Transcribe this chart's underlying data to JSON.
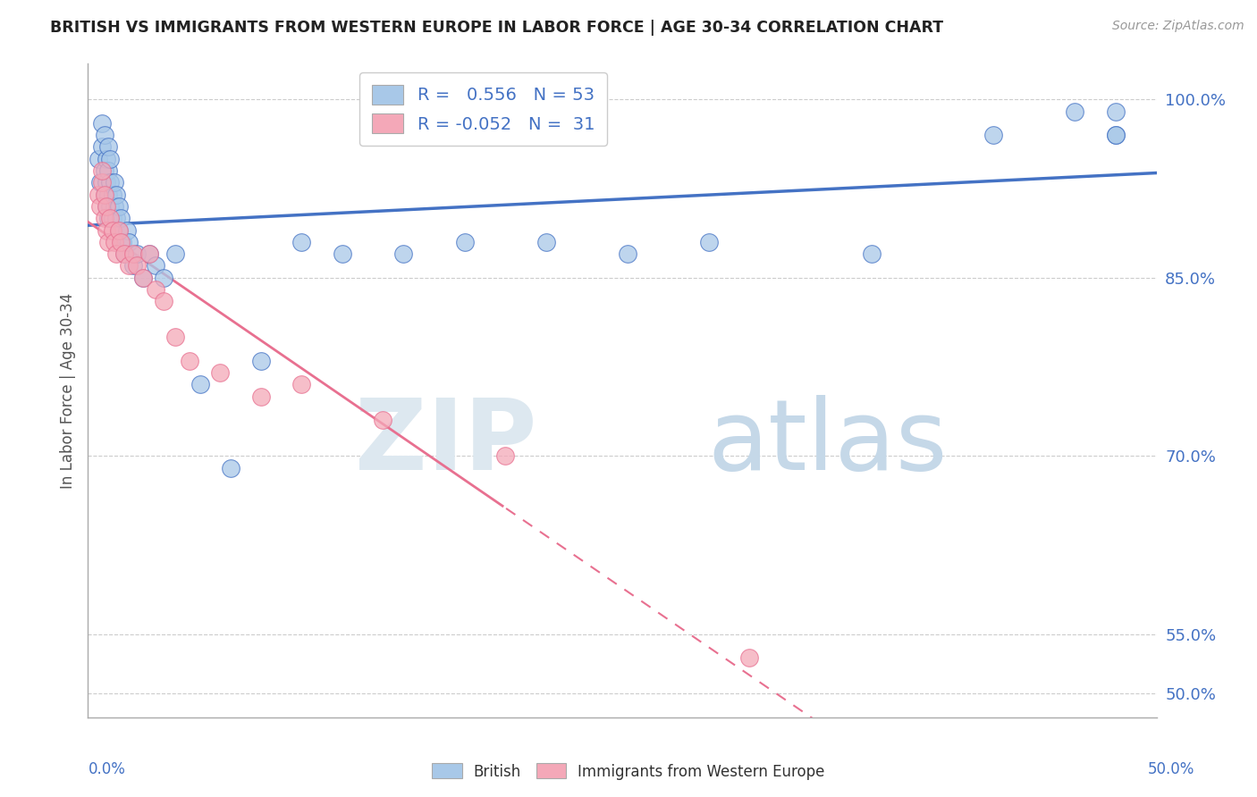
{
  "title": "BRITISH VS IMMIGRANTS FROM WESTERN EUROPE IN LABOR FORCE | AGE 30-34 CORRELATION CHART",
  "source": "Source: ZipAtlas.com",
  "ylabel": "In Labor Force | Age 30-34",
  "ymin": 0.48,
  "ymax": 1.03,
  "xmin": -0.005,
  "xmax": 0.52,
  "blue_R": 0.556,
  "blue_N": 53,
  "pink_R": -0.052,
  "pink_N": 31,
  "blue_color": "#A8C8E8",
  "pink_color": "#F4A8B8",
  "line_blue": "#4472C4",
  "line_pink": "#E87090",
  "yticks": [
    0.5,
    0.55,
    0.7,
    0.85,
    1.0
  ],
  "ytick_labels": [
    "50.0%",
    "55.0%",
    "70.0%",
    "85.0%",
    "100.0%"
  ],
  "blue_scatter_x": [
    0.0,
    0.001,
    0.002,
    0.002,
    0.003,
    0.003,
    0.003,
    0.004,
    0.004,
    0.004,
    0.005,
    0.005,
    0.005,
    0.005,
    0.006,
    0.006,
    0.006,
    0.007,
    0.007,
    0.008,
    0.008,
    0.009,
    0.009,
    0.01,
    0.01,
    0.011,
    0.012,
    0.013,
    0.014,
    0.015,
    0.017,
    0.019,
    0.022,
    0.025,
    0.028,
    0.032,
    0.038,
    0.05,
    0.065,
    0.08,
    0.1,
    0.12,
    0.15,
    0.18,
    0.22,
    0.26,
    0.3,
    0.38,
    0.44,
    0.48,
    0.5,
    0.5,
    0.5
  ],
  "blue_scatter_y": [
    0.95,
    0.93,
    0.96,
    0.98,
    0.92,
    0.94,
    0.97,
    0.91,
    0.93,
    0.95,
    0.9,
    0.92,
    0.94,
    0.96,
    0.91,
    0.93,
    0.95,
    0.9,
    0.92,
    0.91,
    0.93,
    0.9,
    0.92,
    0.89,
    0.91,
    0.9,
    0.88,
    0.87,
    0.89,
    0.88,
    0.86,
    0.87,
    0.85,
    0.87,
    0.86,
    0.85,
    0.87,
    0.76,
    0.69,
    0.78,
    0.88,
    0.87,
    0.87,
    0.88,
    0.88,
    0.87,
    0.88,
    0.87,
    0.97,
    0.99,
    0.97,
    0.99,
    0.97
  ],
  "pink_scatter_x": [
    0.0,
    0.001,
    0.002,
    0.002,
    0.003,
    0.003,
    0.004,
    0.004,
    0.005,
    0.006,
    0.007,
    0.008,
    0.009,
    0.01,
    0.011,
    0.013,
    0.015,
    0.017,
    0.019,
    0.022,
    0.025,
    0.028,
    0.032,
    0.038,
    0.045,
    0.06,
    0.08,
    0.1,
    0.14,
    0.2,
    0.32
  ],
  "pink_scatter_y": [
    0.92,
    0.91,
    0.93,
    0.94,
    0.9,
    0.92,
    0.89,
    0.91,
    0.88,
    0.9,
    0.89,
    0.88,
    0.87,
    0.89,
    0.88,
    0.87,
    0.86,
    0.87,
    0.86,
    0.85,
    0.87,
    0.84,
    0.83,
    0.8,
    0.78,
    0.77,
    0.75,
    0.76,
    0.73,
    0.7,
    0.53
  ]
}
